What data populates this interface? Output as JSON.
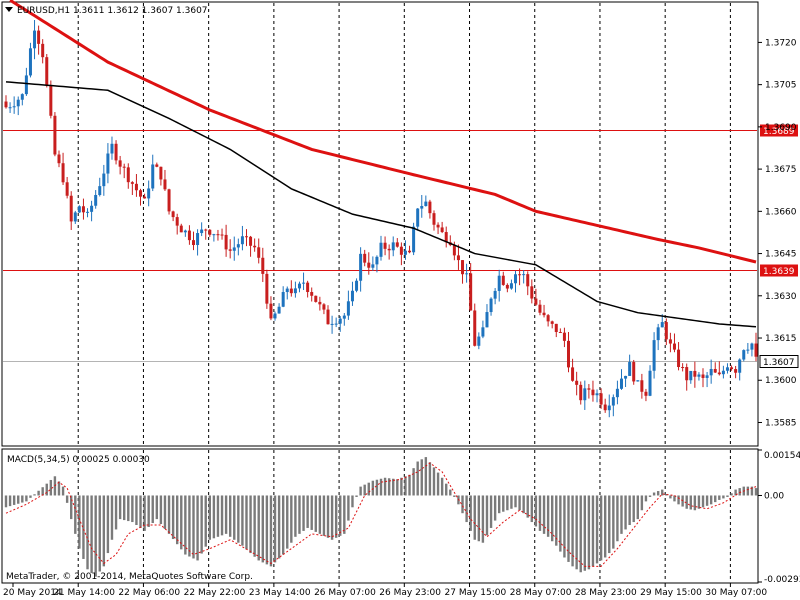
{
  "window": {
    "symbol_header": "EURUSD,H1  1.3611 1.3612 1.3607 1.3607",
    "dropdown_icon": "triangle-down-icon",
    "copyright": "MetaTrader, © 2001-2014, MetaQuotes Software Corp."
  },
  "colors": {
    "background": "#ffffff",
    "bull_candle": "#1e73be",
    "bear_candle": "#c81e1e",
    "ma_slow": "#dd1111",
    "ma_fast": "#000000",
    "hline": "#dd1111",
    "price_line": "#b4b4b4",
    "grid": "#000000",
    "macd_hist": "#7a7a7a",
    "macd_signal": "#dd1111"
  },
  "chart_data": [
    {
      "type": "candlestick",
      "title": "EURUSD,H1",
      "quote": {
        "open": 1.3611,
        "high": 1.3612,
        "low": 1.3607,
        "close": 1.3607
      },
      "ylim": [
        1.3577,
        1.3734
      ],
      "y_ticks": [
        "1.3720",
        "1.3705",
        "1.3690",
        "1.3675",
        "1.3660",
        "1.3645",
        "1.3630",
        "1.3615",
        "1.3600",
        "1.3585"
      ],
      "x_ticks": [
        "20 May 2014",
        "21 May 14:00",
        "22 May 06:00",
        "22 May 22:00",
        "23 May 14:00",
        "26 May 07:00",
        "26 May 23:00",
        "27 May 15:00",
        "28 May 07:00",
        "28 May 23:00",
        "29 May 15:00",
        "30 May 07:00"
      ],
      "horizontal_lines": [
        {
          "label": "1.3689",
          "value": 1.3689
        },
        {
          "label": "1.3639",
          "value": 1.3639
        }
      ],
      "current_price": {
        "label": "1.3607",
        "value": 1.3607
      },
      "grid": "vertical-dashed",
      "series_close_path": [
        [
          0,
          1.3697
        ],
        [
          4,
          1.3701
        ],
        [
          7,
          1.3726
        ],
        [
          9,
          1.3716
        ],
        [
          12,
          1.368
        ],
        [
          14,
          1.3672
        ],
        [
          16,
          1.3656
        ],
        [
          18,
          1.3662
        ],
        [
          20,
          1.3658
        ],
        [
          23,
          1.367
        ],
        [
          26,
          1.3683
        ],
        [
          28,
          1.3677
        ],
        [
          31,
          1.367
        ],
        [
          34,
          1.3663
        ],
        [
          36,
          1.3676
        ],
        [
          38,
          1.3673
        ],
        [
          40,
          1.366
        ],
        [
          43,
          1.3654
        ],
        [
          46,
          1.365
        ],
        [
          49,
          1.3654
        ],
        [
          52,
          1.3652
        ],
        [
          55,
          1.3646
        ],
        [
          58,
          1.365
        ],
        [
          61,
          1.3647
        ],
        [
          63,
          1.3638
        ],
        [
          65,
          1.362
        ],
        [
          67,
          1.3626
        ],
        [
          69,
          1.3633
        ],
        [
          71,
          1.3631
        ],
        [
          73,
          1.3635
        ],
        [
          75,
          1.3631
        ],
        [
          77,
          1.3626
        ],
        [
          79,
          1.3621
        ],
        [
          81,
          1.3622
        ],
        [
          83,
          1.3623
        ],
        [
          85,
          1.363
        ],
        [
          87,
          1.3644
        ],
        [
          90,
          1.364
        ],
        [
          92,
          1.3647
        ],
        [
          95,
          1.3648
        ],
        [
          97,
          1.3646
        ],
        [
          99,
          1.3644
        ],
        [
          101,
          1.3662
        ],
        [
          103,
          1.3663
        ],
        [
          105,
          1.3656
        ],
        [
          107,
          1.3652
        ],
        [
          109,
          1.365
        ],
        [
          111,
          1.3642
        ],
        [
          113,
          1.3636
        ],
        [
          115,
          1.3613
        ],
        [
          117,
          1.3617
        ],
        [
          119,
          1.363
        ],
        [
          121,
          1.3637
        ],
        [
          123,
          1.3634
        ],
        [
          125,
          1.3638
        ],
        [
          127,
          1.3637
        ],
        [
          129,
          1.363
        ],
        [
          131,
          1.3624
        ],
        [
          133,
          1.362
        ],
        [
          135,
          1.3618
        ],
        [
          137,
          1.3614
        ],
        [
          139,
          1.3599
        ],
        [
          141,
          1.3594
        ],
        [
          143,
          1.3597
        ],
        [
          145,
          1.3595
        ],
        [
          147,
          1.3591
        ],
        [
          149,
          1.3595
        ],
        [
          151,
          1.3601
        ],
        [
          153,
          1.3605
        ],
        [
          155,
          1.3598
        ],
        [
          157,
          1.3596
        ],
        [
          159,
          1.3614
        ],
        [
          161,
          1.362
        ],
        [
          163,
          1.3612
        ],
        [
          165,
          1.3606
        ],
        [
          167,
          1.3601
        ],
        [
          169,
          1.3602
        ],
        [
          171,
          1.36
        ],
        [
          173,
          1.3603
        ],
        [
          175,
          1.3601
        ],
        [
          177,
          1.3606
        ],
        [
          179,
          1.3604
        ],
        [
          181,
          1.3612
        ],
        [
          183,
          1.3613
        ],
        [
          184,
          1.3607
        ]
      ],
      "ma_slow": [
        [
          1,
          1.3735
        ],
        [
          25,
          1.3713
        ],
        [
          50,
          1.3696
        ],
        [
          75,
          1.3682
        ],
        [
          100,
          1.3673
        ],
        [
          120,
          1.3666
        ],
        [
          130,
          1.366
        ],
        [
          145,
          1.3655
        ],
        [
          160,
          1.365
        ],
        [
          170,
          1.3647
        ],
        [
          184,
          1.3642
        ]
      ],
      "ma_fast": [
        [
          0,
          1.3706
        ],
        [
          25,
          1.3703
        ],
        [
          40,
          1.3693
        ],
        [
          55,
          1.3682
        ],
        [
          70,
          1.3668
        ],
        [
          85,
          1.3659
        ],
        [
          100,
          1.3654
        ],
        [
          115,
          1.3645
        ],
        [
          130,
          1.3641
        ],
        [
          145,
          1.3628
        ],
        [
          155,
          1.3624
        ],
        [
          165,
          1.3622
        ],
        [
          175,
          1.362
        ],
        [
          184,
          1.3619
        ]
      ]
    },
    {
      "type": "bar",
      "title": "MACD(5,34,5) 0.00025 0.00030",
      "ylim": [
        -0.00293,
        0.00154
      ],
      "y_ticks": [
        "0.00154",
        "0.00",
        "-0.00293"
      ],
      "histogram_path": [
        [
          0,
          -0.0004
        ],
        [
          5,
          -0.0002
        ],
        [
          10,
          0.0004
        ],
        [
          12,
          0.00065
        ],
        [
          14,
          0.0003
        ],
        [
          16,
          -0.0008
        ],
        [
          18,
          -0.0018
        ],
        [
          20,
          -0.0025
        ],
        [
          22,
          -0.00275
        ],
        [
          24,
          -0.0024
        ],
        [
          26,
          -0.0015
        ],
        [
          28,
          -0.0008
        ],
        [
          31,
          -0.0009
        ],
        [
          34,
          -0.0012
        ],
        [
          37,
          -0.0008
        ],
        [
          40,
          -0.0013
        ],
        [
          44,
          -0.002
        ],
        [
          47,
          -0.0022
        ],
        [
          50,
          -0.0015
        ],
        [
          54,
          -0.0013
        ],
        [
          58,
          -0.0017
        ],
        [
          62,
          -0.0022
        ],
        [
          65,
          -0.0024
        ],
        [
          68,
          -0.002
        ],
        [
          71,
          -0.0014
        ],
        [
          74,
          -0.0011
        ],
        [
          77,
          -0.0013
        ],
        [
          80,
          -0.0015
        ],
        [
          83,
          -0.0013
        ],
        [
          85,
          -0.0004
        ],
        [
          87,
          0.0003
        ],
        [
          90,
          0.0005
        ],
        [
          93,
          0.0006
        ],
        [
          96,
          0.00055
        ],
        [
          99,
          0.0007
        ],
        [
          101,
          0.00115
        ],
        [
          103,
          0.0013
        ],
        [
          105,
          0.00095
        ],
        [
          107,
          0.0006
        ],
        [
          109,
          0.0002
        ],
        [
          111,
          -0.0003
        ],
        [
          113,
          -0.0009
        ],
        [
          115,
          -0.0015
        ],
        [
          117,
          -0.0016
        ],
        [
          119,
          -0.0011
        ],
        [
          121,
          -0.0006
        ],
        [
          123,
          -0.0005
        ],
        [
          125,
          -0.0004
        ],
        [
          127,
          -0.0006
        ],
        [
          129,
          -0.0009
        ],
        [
          131,
          -0.0012
        ],
        [
          133,
          -0.0014
        ],
        [
          135,
          -0.0017
        ],
        [
          137,
          -0.0021
        ],
        [
          139,
          -0.0024
        ],
        [
          141,
          -0.0026
        ],
        [
          143,
          -0.0025
        ],
        [
          145,
          -0.0023
        ],
        [
          147,
          -0.0021
        ],
        [
          149,
          -0.0018
        ],
        [
          151,
          -0.0013
        ],
        [
          153,
          -0.001
        ],
        [
          155,
          -0.0008
        ],
        [
          157,
          -0.0002
        ],
        [
          159,
          0.0001
        ],
        [
          161,
          0.0002
        ],
        [
          163,
          -0.0001
        ],
        [
          165,
          -0.0003
        ],
        [
          167,
          -0.00045
        ],
        [
          169,
          -0.0005
        ],
        [
          171,
          -0.0004
        ],
        [
          173,
          -0.0003
        ],
        [
          175,
          -0.00015
        ],
        [
          177,
          -5e-05
        ],
        [
          179,
          0.0002
        ],
        [
          181,
          0.0003
        ],
        [
          183,
          0.0003
        ],
        [
          184,
          0.00025
        ]
      ],
      "signal_path": [
        [
          0,
          -0.0006
        ],
        [
          5,
          -0.0003
        ],
        [
          10,
          0.0001
        ],
        [
          13,
          0.00045
        ],
        [
          15,
          0.00025
        ],
        [
          18,
          -0.0008
        ],
        [
          21,
          -0.0018
        ],
        [
          24,
          -0.0023
        ],
        [
          27,
          -0.002
        ],
        [
          30,
          -0.0013
        ],
        [
          34,
          -0.001
        ],
        [
          38,
          -0.001
        ],
        [
          42,
          -0.0015
        ],
        [
          46,
          -0.002
        ],
        [
          50,
          -0.0018
        ],
        [
          55,
          -0.0015
        ],
        [
          60,
          -0.0019
        ],
        [
          65,
          -0.0023
        ],
        [
          70,
          -0.0018
        ],
        [
          75,
          -0.0013
        ],
        [
          80,
          -0.0014
        ],
        [
          84,
          -0.0011
        ],
        [
          88,
          0.0
        ],
        [
          92,
          0.00045
        ],
        [
          97,
          0.00055
        ],
        [
          101,
          0.0008
        ],
        [
          104,
          0.0011
        ],
        [
          107,
          0.0008
        ],
        [
          110,
          0.0001
        ],
        [
          114,
          -0.0008
        ],
        [
          118,
          -0.0014
        ],
        [
          122,
          -0.0009
        ],
        [
          126,
          -0.0005
        ],
        [
          130,
          -0.0008
        ],
        [
          134,
          -0.0013
        ],
        [
          138,
          -0.0019
        ],
        [
          142,
          -0.0024
        ],
        [
          146,
          -0.0024
        ],
        [
          150,
          -0.0018
        ],
        [
          154,
          -0.0011
        ],
        [
          158,
          -0.0004
        ],
        [
          161,
          5e-05
        ],
        [
          164,
          0.0
        ],
        [
          168,
          -0.00035
        ],
        [
          172,
          -0.00045
        ],
        [
          176,
          -0.00025
        ],
        [
          180,
          0.0001
        ],
        [
          184,
          0.0003
        ]
      ]
    }
  ]
}
